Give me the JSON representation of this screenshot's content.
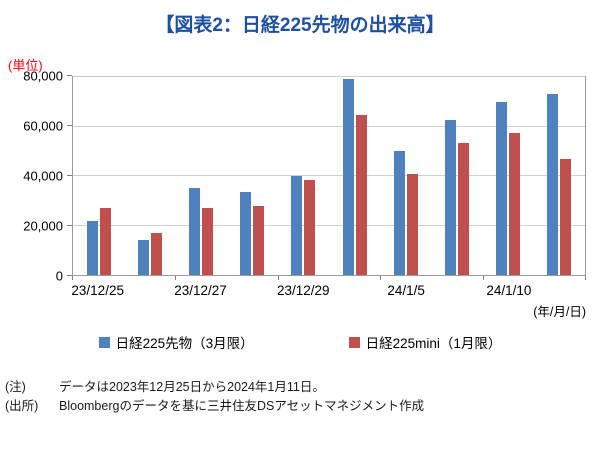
{
  "title": "【図表2：日経225先物の出来高】",
  "unit_label": "(単位)",
  "axis_note": "(年/月/日)",
  "chart_data": {
    "type": "bar",
    "title": "図表2:日経225先物の出来高",
    "ylabel": "(単位)",
    "ylim": [
      0,
      80000
    ],
    "grid": true,
    "legend_position": "bottom",
    "y_ticks": [
      {
        "label": "0",
        "value": 0
      },
      {
        "label": "20,000",
        "value": 20000
      },
      {
        "label": "40,000",
        "value": 40000
      },
      {
        "label": "60,000",
        "value": 60000
      },
      {
        "label": "80,000",
        "value": 80000
      }
    ],
    "x_tick_labels": [
      "23/12/25",
      "",
      "23/12/27",
      "",
      "23/12/29",
      "",
      "24/1/5",
      "",
      "24/1/10",
      ""
    ],
    "series": [
      {
        "name": "日経225先物（3月限）",
        "color": "#4F81BD",
        "values": [
          22000,
          14000,
          35000,
          33500,
          40000,
          79000,
          50000,
          62500,
          70000,
          73000
        ]
      },
      {
        "name": "日経225mini（1月限）",
        "color": "#C0504D",
        "values": [
          27000,
          17000,
          27000,
          28000,
          38500,
          64500,
          41000,
          53500,
          57500,
          47000
        ]
      }
    ]
  },
  "notes": [
    {
      "prefix": "(注)",
      "text": "データは2023年12月25日から2024年1月11日。"
    },
    {
      "prefix": "(出所)",
      "text": "Bloombergのデータを基に三井住友DSアセットマネジメント作成"
    }
  ]
}
